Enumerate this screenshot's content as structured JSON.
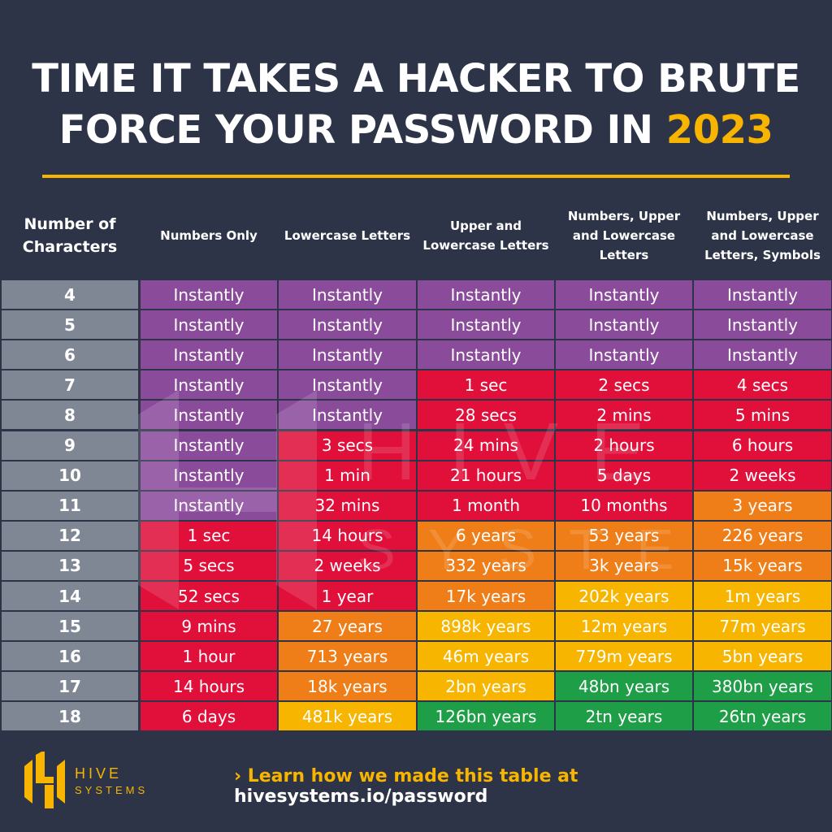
{
  "title": {
    "line1": "TIME IT TAKES A HACKER TO BRUTE",
    "line2": "FORCE YOUR PASSWORD IN ",
    "year": "2023"
  },
  "colors": {
    "background": "#2d3447",
    "accent": "#f7b500",
    "purple": "#8b4b9b",
    "red": "#e0103a",
    "orange": "#ef7d18",
    "yellow": "#f7b500",
    "green": "#1f9e48",
    "gray": "#7f8794"
  },
  "chart_data": {
    "type": "table",
    "columns": [
      "Number of Characters",
      "Numbers Only",
      "Lowercase Letters",
      "Upper and Lowercase Letters",
      "Numbers, Upper and Lowercase Letters",
      "Numbers, Upper and Lowercase Letters, Symbols"
    ],
    "rows": [
      {
        "chars": "4",
        "values": [
          "Instantly",
          "Instantly",
          "Instantly",
          "Instantly",
          "Instantly"
        ],
        "levels": [
          "purple",
          "purple",
          "purple",
          "purple",
          "purple"
        ]
      },
      {
        "chars": "5",
        "values": [
          "Instantly",
          "Instantly",
          "Instantly",
          "Instantly",
          "Instantly"
        ],
        "levels": [
          "purple",
          "purple",
          "purple",
          "purple",
          "purple"
        ]
      },
      {
        "chars": "6",
        "values": [
          "Instantly",
          "Instantly",
          "Instantly",
          "Instantly",
          "Instantly"
        ],
        "levels": [
          "purple",
          "purple",
          "purple",
          "purple",
          "purple"
        ]
      },
      {
        "chars": "7",
        "values": [
          "Instantly",
          "Instantly",
          "1 sec",
          "2 secs",
          "4 secs"
        ],
        "levels": [
          "purple",
          "purple",
          "red",
          "red",
          "red"
        ]
      },
      {
        "chars": "8",
        "values": [
          "Instantly",
          "Instantly",
          "28 secs",
          "2 mins",
          "5 mins"
        ],
        "levels": [
          "purple",
          "purple",
          "red",
          "red",
          "red"
        ]
      },
      {
        "chars": "9",
        "values": [
          "Instantly",
          "3 secs",
          "24 mins",
          "2 hours",
          "6 hours"
        ],
        "levels": [
          "purple",
          "red",
          "red",
          "red",
          "red"
        ]
      },
      {
        "chars": "10",
        "values": [
          "Instantly",
          "1 min",
          "21 hours",
          "5 days",
          "2 weeks"
        ],
        "levels": [
          "purple",
          "red",
          "red",
          "red",
          "red"
        ]
      },
      {
        "chars": "11",
        "values": [
          "Instantly",
          "32 mins",
          "1 month",
          "10 months",
          "3 years"
        ],
        "levels": [
          "purple",
          "red",
          "red",
          "red",
          "orange"
        ]
      },
      {
        "chars": "12",
        "values": [
          "1 sec",
          "14 hours",
          "6 years",
          "53 years",
          "226 years"
        ],
        "levels": [
          "red",
          "red",
          "orange",
          "orange",
          "orange"
        ]
      },
      {
        "chars": "13",
        "values": [
          "5 secs",
          "2 weeks",
          "332 years",
          "3k years",
          "15k years"
        ],
        "levels": [
          "red",
          "red",
          "orange",
          "orange",
          "orange"
        ]
      },
      {
        "chars": "14",
        "values": [
          "52 secs",
          "1 year",
          "17k years",
          "202k years",
          "1m years"
        ],
        "levels": [
          "red",
          "red",
          "orange",
          "yellow",
          "yellow"
        ]
      },
      {
        "chars": "15",
        "values": [
          "9 mins",
          "27 years",
          "898k years",
          "12m years",
          "77m years"
        ],
        "levels": [
          "red",
          "orange",
          "yellow",
          "yellow",
          "yellow"
        ]
      },
      {
        "chars": "16",
        "values": [
          "1 hour",
          "713 years",
          "46m years",
          "779m years",
          "5bn years"
        ],
        "levels": [
          "red",
          "orange",
          "yellow",
          "yellow",
          "yellow"
        ]
      },
      {
        "chars": "17",
        "values": [
          "14 hours",
          "18k years",
          "2bn years",
          "48bn years",
          "380bn years"
        ],
        "levels": [
          "red",
          "orange",
          "yellow",
          "green",
          "green"
        ]
      },
      {
        "chars": "18",
        "values": [
          "6 days",
          "481k years",
          "126bn years",
          "2tn years",
          "26tn years"
        ],
        "levels": [
          "red",
          "yellow",
          "green",
          "green",
          "green"
        ]
      }
    ]
  },
  "watermark": "HIVE SYSTEMS",
  "footer": {
    "logo_text_1": "HIVE",
    "logo_text_2": "SYSTEMS",
    "link_prefix": "› Learn how we made this table at ",
    "link_url": "hivesystems.io/password"
  }
}
